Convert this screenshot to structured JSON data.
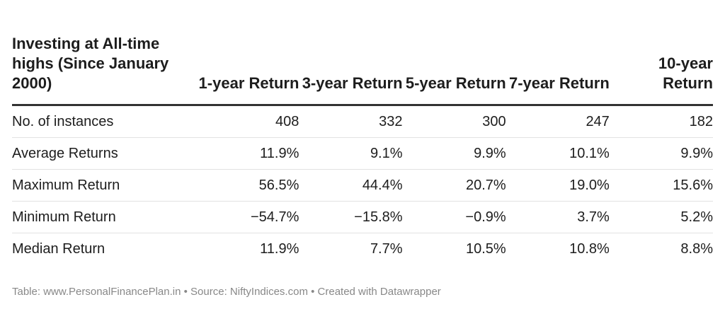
{
  "chart_data": {
    "type": "table",
    "columns": [
      "Investing at All-time highs (Since January 2000)",
      "1-year Return",
      "3-year Return",
      "5-year Return",
      "7-year Return",
      "10-year Return"
    ],
    "rows": [
      {
        "label": "No. of instances",
        "values": [
          "408",
          "332",
          "300",
          "247",
          "182"
        ]
      },
      {
        "label": "Average Returns",
        "values": [
          "11.9%",
          "9.1%",
          "9.9%",
          "10.1%",
          "9.9%"
        ]
      },
      {
        "label": "Maximum Return",
        "values": [
          "56.5%",
          "44.4%",
          "20.7%",
          "19.0%",
          "15.6%"
        ]
      },
      {
        "label": "Minimum Return",
        "values": [
          "−54.7%",
          "−15.8%",
          "−0.9%",
          "3.7%",
          "5.2%"
        ]
      },
      {
        "label": "Median Return",
        "values": [
          "11.9%",
          "7.7%",
          "10.5%",
          "10.8%",
          "8.8%"
        ]
      }
    ],
    "footer": "Table: www.PersonalFinancePlan.in • Source: NiftyIndices.com • Created with Datawrapper"
  }
}
